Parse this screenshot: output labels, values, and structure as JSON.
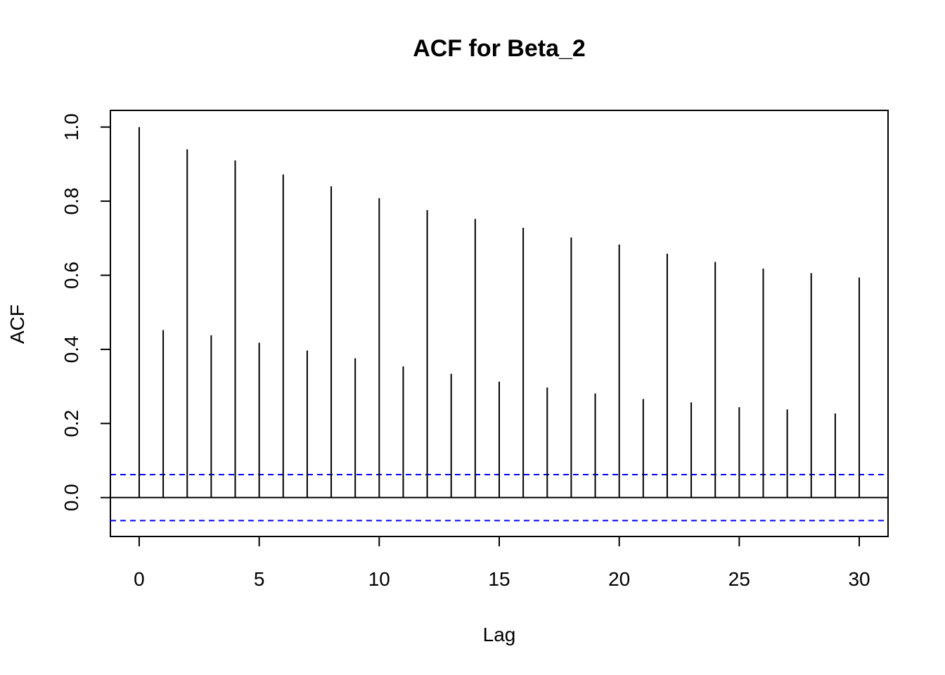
{
  "chart_data": {
    "type": "bar",
    "subtype": "acf-stem",
    "title": "ACF for Beta_2",
    "xlabel": "Lag",
    "ylabel": "ACF",
    "xlim": [
      -1.2,
      31.2
    ],
    "ylim": [
      -0.105,
      1.045
    ],
    "xticks": [
      0,
      5,
      10,
      15,
      20,
      25,
      30
    ],
    "yticks": [
      0.0,
      0.2,
      0.4,
      0.6,
      0.8,
      1.0
    ],
    "xtick_labels": [
      "0",
      "5",
      "10",
      "15",
      "20",
      "25",
      "30"
    ],
    "ytick_labels": [
      "0.0",
      "0.2",
      "0.4",
      "0.6",
      "0.8",
      "1.0"
    ],
    "lags": [
      0,
      1,
      2,
      3,
      4,
      5,
      6,
      7,
      8,
      9,
      10,
      11,
      12,
      13,
      14,
      15,
      16,
      17,
      18,
      19,
      20,
      21,
      22,
      23,
      24,
      25,
      26,
      27,
      28,
      29,
      30
    ],
    "values": [
      1.0,
      0.452,
      0.94,
      0.438,
      0.91,
      0.418,
      0.872,
      0.397,
      0.84,
      0.376,
      0.808,
      0.354,
      0.776,
      0.334,
      0.752,
      0.313,
      0.728,
      0.297,
      0.702,
      0.281,
      0.683,
      0.266,
      0.658,
      0.257,
      0.636,
      0.244,
      0.618,
      0.238,
      0.606,
      0.227,
      0.594
    ],
    "confidence_bound": 0.062,
    "confidence_line_color": "#0000ff",
    "bar_color": "#000000",
    "grid": false,
    "legend": "none"
  }
}
